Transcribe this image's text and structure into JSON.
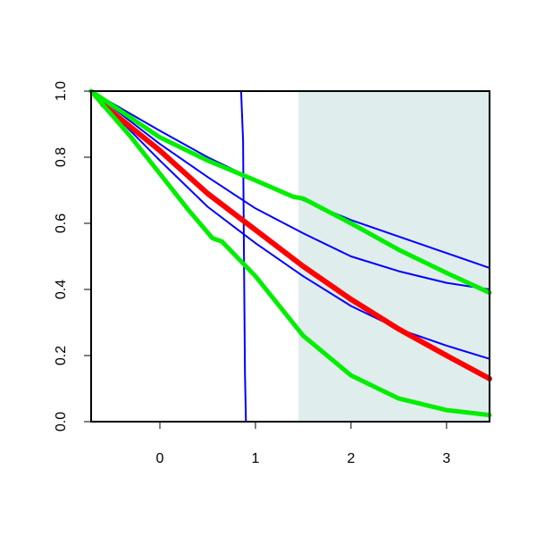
{
  "chart_data": {
    "type": "line",
    "title": "",
    "xlabel": "",
    "ylabel": "",
    "xlim": [
      -0.72,
      3.45
    ],
    "ylim": [
      0,
      1
    ],
    "grid": false,
    "legend": "none",
    "x_ticks": [
      {
        "value": 0,
        "label": "0"
      },
      {
        "value": 1,
        "label": "1"
      },
      {
        "value": 2,
        "label": "2"
      },
      {
        "value": 3,
        "label": "3"
      }
    ],
    "y_ticks": [
      {
        "value": 0.0,
        "label": "0.0"
      },
      {
        "value": 0.2,
        "label": "0.2"
      },
      {
        "value": 0.4,
        "label": "0.4"
      },
      {
        "value": 0.6,
        "label": "0.6"
      },
      {
        "value": 0.8,
        "label": "0.8"
      },
      {
        "value": 1.0,
        "label": "1.0"
      }
    ],
    "shaded_region": {
      "x_start": 1.45,
      "x_end": 3.45,
      "color": "#e0eded"
    },
    "series": [
      {
        "color": "#0000ff",
        "width": 2,
        "x": [
          -0.72,
          0.0,
          0.5,
          1.0,
          1.5,
          2.0,
          2.5,
          3.0,
          3.45
        ],
        "y": [
          1.0,
          0.88,
          0.8,
          0.73,
          0.67,
          0.61,
          0.56,
          0.51,
          0.465
        ]
      },
      {
        "color": "#0000ff",
        "width": 2,
        "x": [
          -0.72,
          0.0,
          0.5,
          1.0,
          1.5,
          2.0,
          2.5,
          3.0,
          3.45
        ],
        "y": [
          1.0,
          0.84,
          0.74,
          0.645,
          0.57,
          0.5,
          0.455,
          0.42,
          0.4
        ]
      },
      {
        "color": "#0000ff",
        "width": 2,
        "x": [
          -0.72,
          0.0,
          0.5,
          1.0,
          1.5,
          2.0,
          2.5,
          3.0,
          3.45
        ],
        "y": [
          1.0,
          0.79,
          0.65,
          0.54,
          0.44,
          0.35,
          0.28,
          0.23,
          0.19
        ]
      },
      {
        "color": "#0000ff",
        "width": 2,
        "x": [
          -0.72,
          0.85,
          0.87,
          0.88,
          0.89,
          0.9,
          1.0,
          3.45
        ],
        "y": [
          1.0,
          1.0,
          0.85,
          0.5,
          0.15,
          0.0,
          0.0,
          0.0
        ]
      },
      {
        "color": "#ff0000",
        "width": 6,
        "x": [
          -0.6,
          0.0,
          0.5,
          1.0,
          1.5,
          2.0,
          2.5,
          3.0,
          3.45
        ],
        "y": [
          0.96,
          0.82,
          0.69,
          0.58,
          0.47,
          0.37,
          0.28,
          0.2,
          0.13
        ]
      },
      {
        "color": "#00ee00",
        "width": 5,
        "x": [
          -0.72,
          0.0,
          0.5,
          1.0,
          1.4,
          1.5,
          2.0,
          2.5,
          3.0,
          3.45
        ],
        "y": [
          1.0,
          0.86,
          0.79,
          0.73,
          0.68,
          0.675,
          0.6,
          0.52,
          0.45,
          0.39
        ]
      },
      {
        "color": "#00ee00",
        "width": 5,
        "x": [
          -0.72,
          -0.3,
          0.0,
          0.3,
          0.55,
          0.65,
          1.0,
          1.5,
          2.0,
          2.5,
          3.0,
          3.45
        ],
        "y": [
          1.0,
          0.86,
          0.75,
          0.64,
          0.555,
          0.545,
          0.44,
          0.26,
          0.14,
          0.07,
          0.035,
          0.02
        ]
      }
    ]
  }
}
